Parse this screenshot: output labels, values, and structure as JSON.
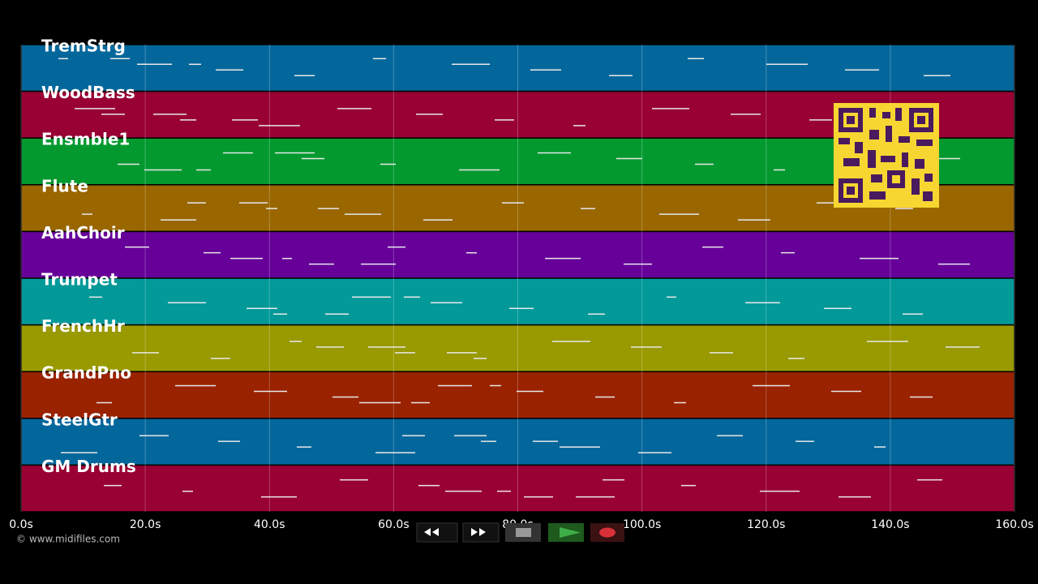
{
  "tracks": [
    {
      "name": "TremStrg",
      "color": "#04679c"
    },
    {
      "name": "WoodBass",
      "color": "#990033"
    },
    {
      "name": "Ensmble1",
      "color": "#03992f"
    },
    {
      "name": "Flute",
      "color": "#996600"
    },
    {
      "name": "AahChoir",
      "color": "#660099"
    },
    {
      "name": "Trumpet",
      "color": "#039999"
    },
    {
      "name": "FrenchHr",
      "color": "#999900"
    },
    {
      "name": "GrandPno",
      "color": "#992200"
    },
    {
      "name": "SteelGtr",
      "color": "#04679c"
    },
    {
      "name": "GM Drums",
      "color": "#990033"
    }
  ],
  "time_axis": {
    "range": [
      0,
      160
    ],
    "ticks": [
      {
        "value": 0,
        "label": "0.0s"
      },
      {
        "value": 20,
        "label": "20.0s"
      },
      {
        "value": 40,
        "label": "40.0s"
      },
      {
        "value": 60,
        "label": "60.0s"
      },
      {
        "value": 80,
        "label": "80.0s"
      },
      {
        "value": 100,
        "label": "100.0s"
      },
      {
        "value": 120,
        "label": "120.0s"
      },
      {
        "value": 140,
        "label": "140.0s"
      },
      {
        "value": 160,
        "label": "160.0s"
      }
    ]
  },
  "copyright": "© www.midifiles.com"
}
